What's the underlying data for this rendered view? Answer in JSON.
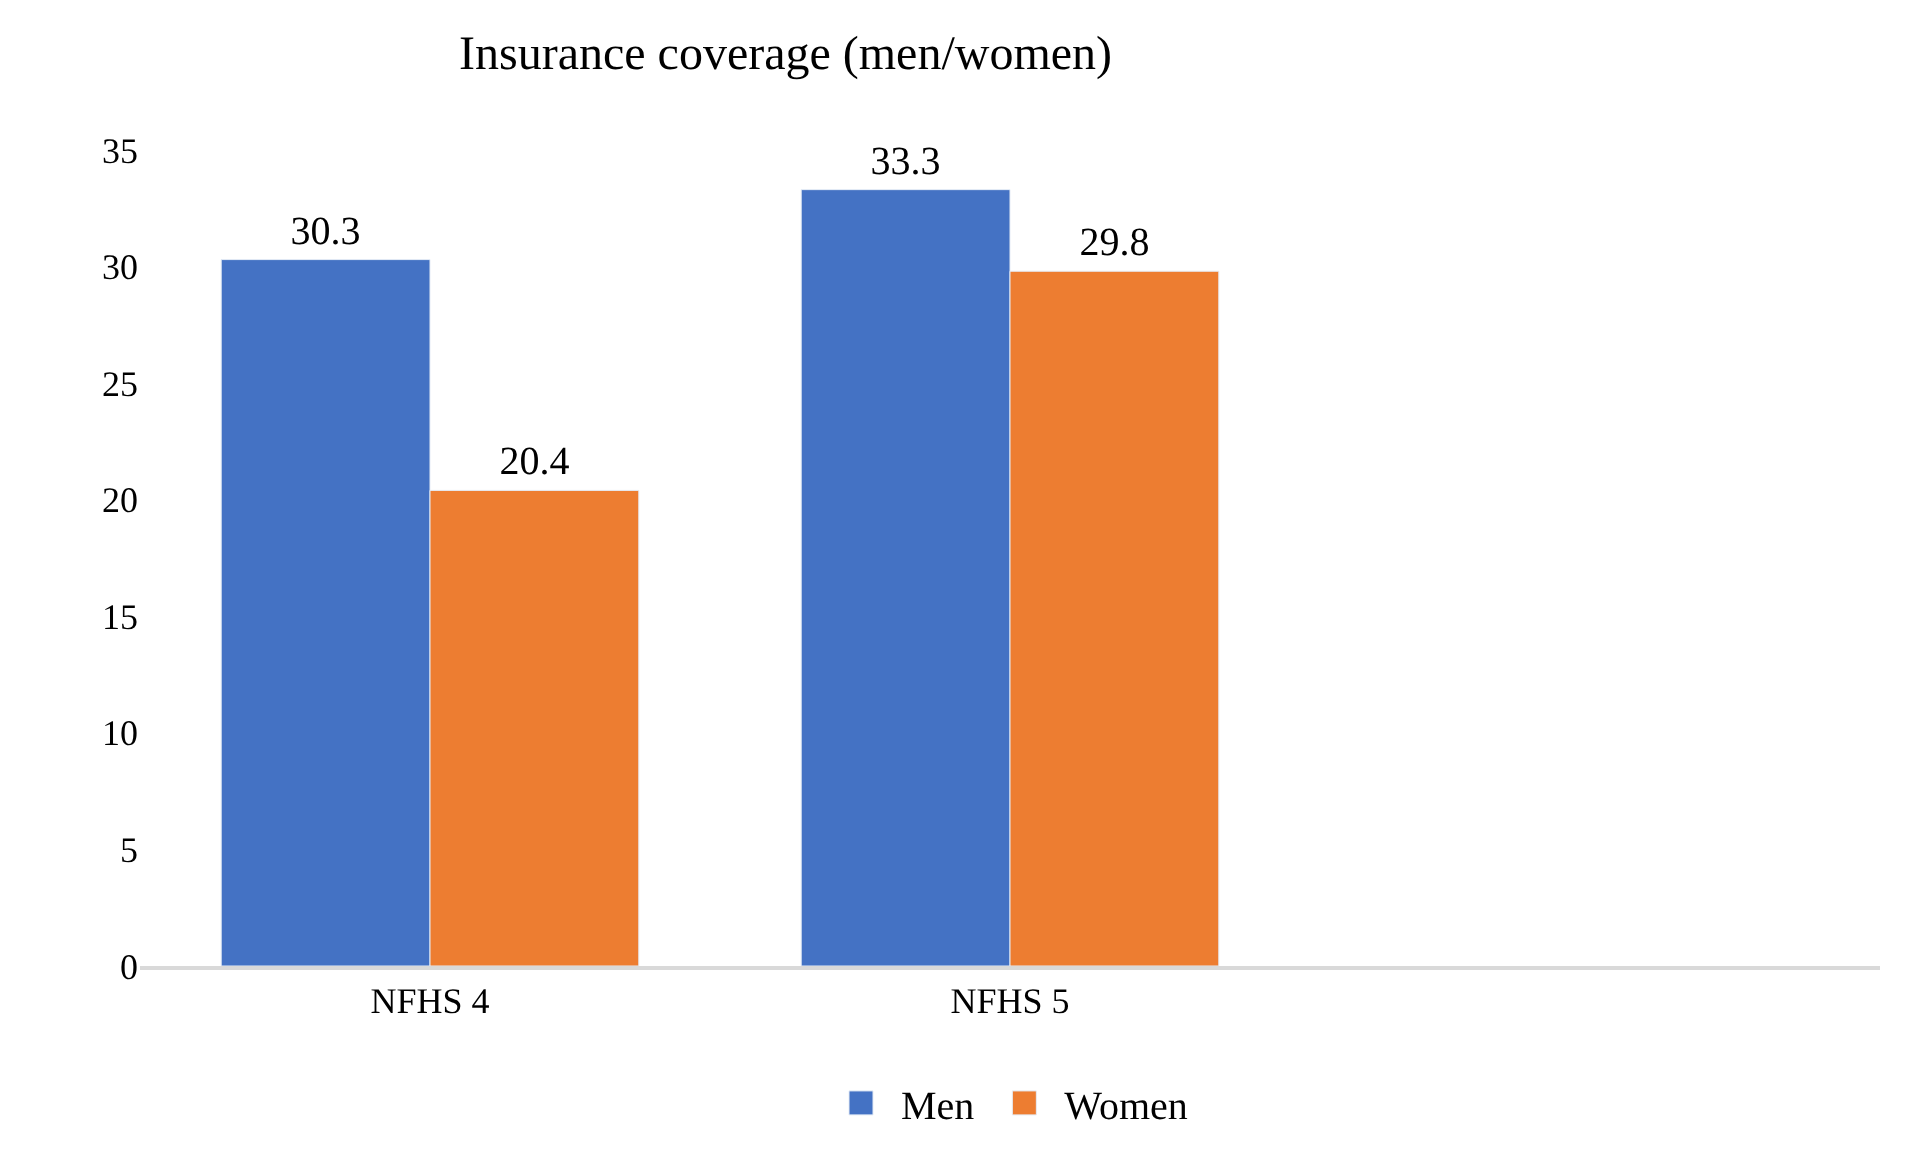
{
  "chart_data": {
    "type": "bar",
    "title": "Insurance coverage (men/women)",
    "categories": [
      "NFHS 4",
      "NFHS 5",
      null
    ],
    "series": [
      {
        "name": "Men",
        "color": "#4472c4",
        "values": [
          30.3,
          33.3,
          null
        ]
      },
      {
        "name": "Women",
        "color": "#ed7d31",
        "values": [
          20.4,
          29.8,
          null
        ]
      }
    ],
    "ylim": [
      0,
      35
    ],
    "yticks": [
      0,
      5,
      10,
      15,
      20,
      25,
      30,
      35
    ],
    "data_labels": true,
    "grid": false,
    "legend": "bottom"
  }
}
